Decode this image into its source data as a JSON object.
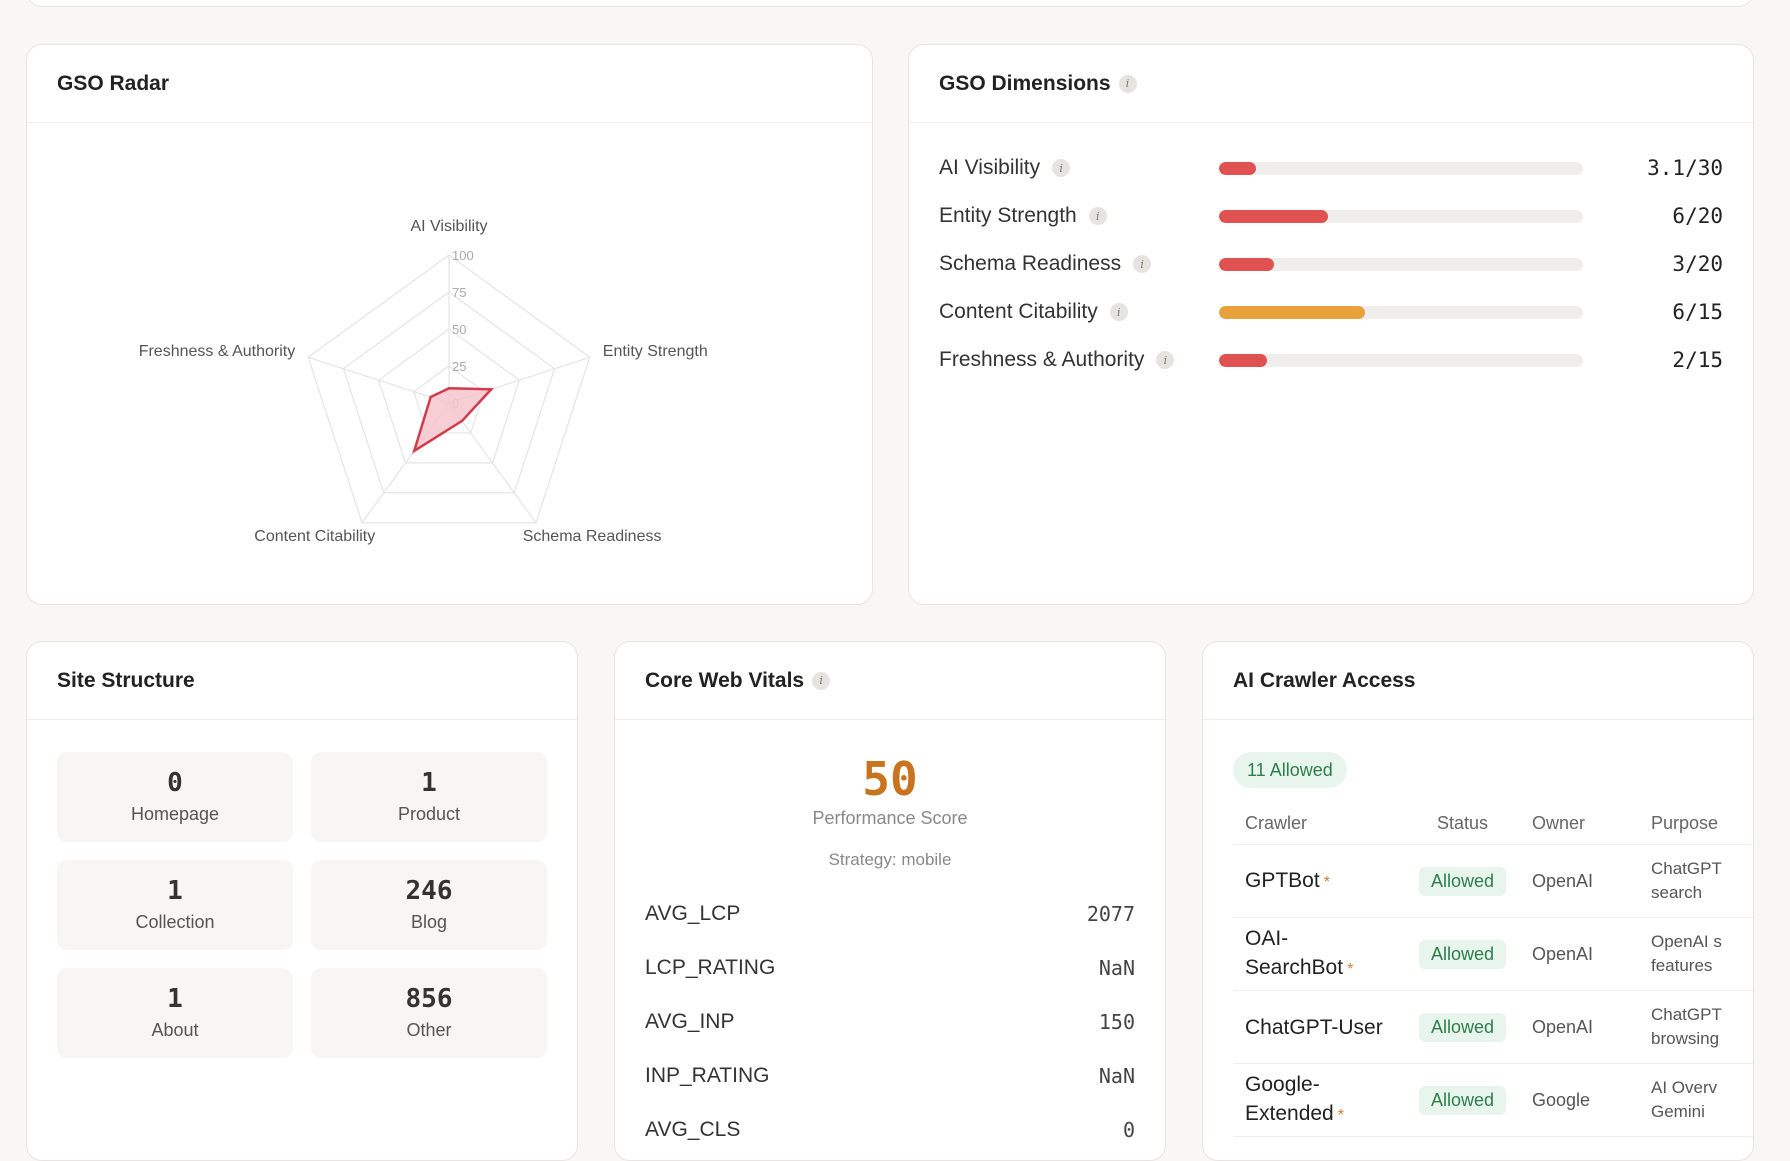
{
  "radar": {
    "title": "GSO Radar",
    "axes": [
      "AI Visibility",
      "Entity Strength",
      "Schema Readiness",
      "Content Citability",
      "Freshness & Authority"
    ],
    "ticks": [
      "100",
      "75",
      "50",
      "25",
      "0"
    ],
    "colors": {
      "fill": "#f5c6cd",
      "stroke": "#d23a4e",
      "grid": "#e4e4e4"
    }
  },
  "chart_data": {
    "type": "radar",
    "title": "GSO Radar",
    "categories": [
      "AI Visibility",
      "Entity Strength",
      "Schema Readiness",
      "Content Citability",
      "Freshness & Authority"
    ],
    "values": [
      10,
      30,
      15,
      40,
      13
    ],
    "rlim": [
      0,
      100
    ],
    "ticks": [
      0,
      25,
      50,
      75,
      100
    ]
  },
  "dimensions": {
    "title": "GSO Dimensions",
    "items": [
      {
        "label": "AI Visibility",
        "value": "3.1/30",
        "fraction": 0.103,
        "color": "#e05252"
      },
      {
        "label": "Entity Strength",
        "value": "6/20",
        "fraction": 0.3,
        "color": "#e05252"
      },
      {
        "label": "Schema Readiness",
        "value": "3/20",
        "fraction": 0.15,
        "color": "#e05252"
      },
      {
        "label": "Content Citability",
        "value": "6/15",
        "fraction": 0.4,
        "color": "#e9a23b"
      },
      {
        "label": "Freshness & Authority",
        "value": "2/15",
        "fraction": 0.133,
        "color": "#e05252"
      }
    ]
  },
  "site_structure": {
    "title": "Site Structure",
    "tiles": [
      {
        "count": "0",
        "label": "Homepage"
      },
      {
        "count": "1",
        "label": "Product"
      },
      {
        "count": "1",
        "label": "Collection"
      },
      {
        "count": "246",
        "label": "Blog"
      },
      {
        "count": "1",
        "label": "About"
      },
      {
        "count": "856",
        "label": "Other"
      }
    ]
  },
  "web_vitals": {
    "title": "Core Web Vitals",
    "score": "50",
    "score_label": "Performance Score",
    "strategy": "Strategy: mobile",
    "metrics": [
      {
        "key": "AVG_LCP",
        "value": "2077"
      },
      {
        "key": "LCP_RATING",
        "value": "NaN"
      },
      {
        "key": "AVG_INP",
        "value": "150"
      },
      {
        "key": "INP_RATING",
        "value": "NaN"
      },
      {
        "key": "AVG_CLS",
        "value": "0"
      }
    ]
  },
  "crawlers": {
    "title": "AI Crawler Access",
    "allowed_badge": "11 Allowed",
    "columns": [
      "Crawler",
      "Status",
      "Owner",
      "Purpose"
    ],
    "rows": [
      {
        "name": "GPTBot",
        "star": "*",
        "status": "Allowed",
        "owner": "OpenAI",
        "purpose1": "ChatGPT",
        "purpose2": "search"
      },
      {
        "name": "OAI-SearchBot",
        "name1": "OAI-",
        "name2": "SearchBot",
        "star": "*",
        "status": "Allowed",
        "owner": "OpenAI",
        "purpose1": "OpenAI s",
        "purpose2": "features"
      },
      {
        "name": "ChatGPT-User",
        "star": "",
        "status": "Allowed",
        "owner": "OpenAI",
        "purpose1": "ChatGPT",
        "purpose2": "browsing"
      },
      {
        "name": "Google-Extended",
        "name1": "Google-",
        "name2": "Extended",
        "star": "*",
        "status": "Allowed",
        "owner": "Google",
        "purpose1": "AI Overv",
        "purpose2": "Gemini"
      }
    ]
  }
}
